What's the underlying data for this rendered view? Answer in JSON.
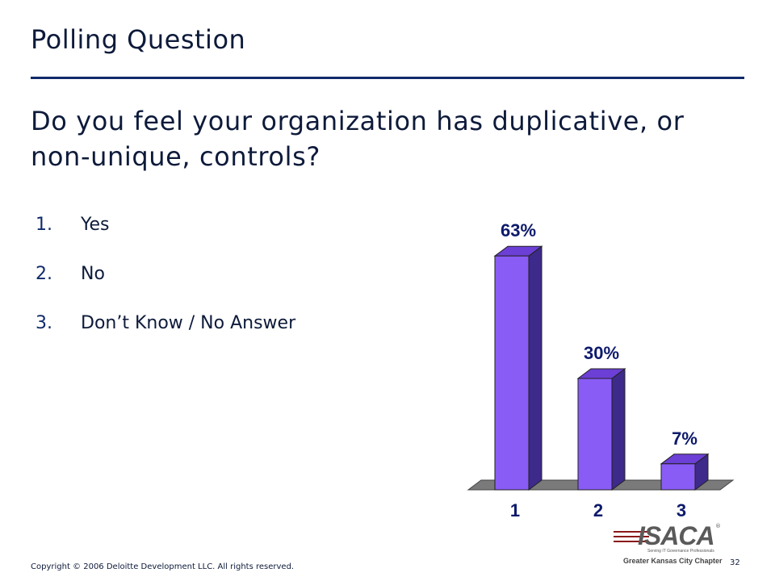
{
  "slide": {
    "title": "Polling Question",
    "question": "Do you feel your organization has duplicative, or non-unique, controls?",
    "options": [
      {
        "number": "1.",
        "label": "Yes"
      },
      {
        "number": "2.",
        "label": "No"
      },
      {
        "number": "3.",
        "label": "Don’t Know / No Answer"
      }
    ],
    "footer": {
      "copyright": "Copyright © 2006 Deloitte Development LLC. All rights reserved.",
      "page_number": "32"
    },
    "logo": {
      "word": "ISACA",
      "registered": "®",
      "tagline": "Serving IT Governance Professionals",
      "chapter": "Greater Kansas City Chapter"
    }
  },
  "chart_data": {
    "type": "bar",
    "style": "3d",
    "categories": [
      "1",
      "2",
      "3"
    ],
    "values": [
      63,
      30,
      7
    ],
    "data_labels": [
      "63%",
      "30%",
      "7%"
    ],
    "ylim": [
      0,
      70
    ],
    "grid": false,
    "colors": {
      "front": "#8a5cf6",
      "top": "#6c3fd6",
      "side": "#3d2a8a",
      "floor": "#7a7a7a"
    }
  }
}
